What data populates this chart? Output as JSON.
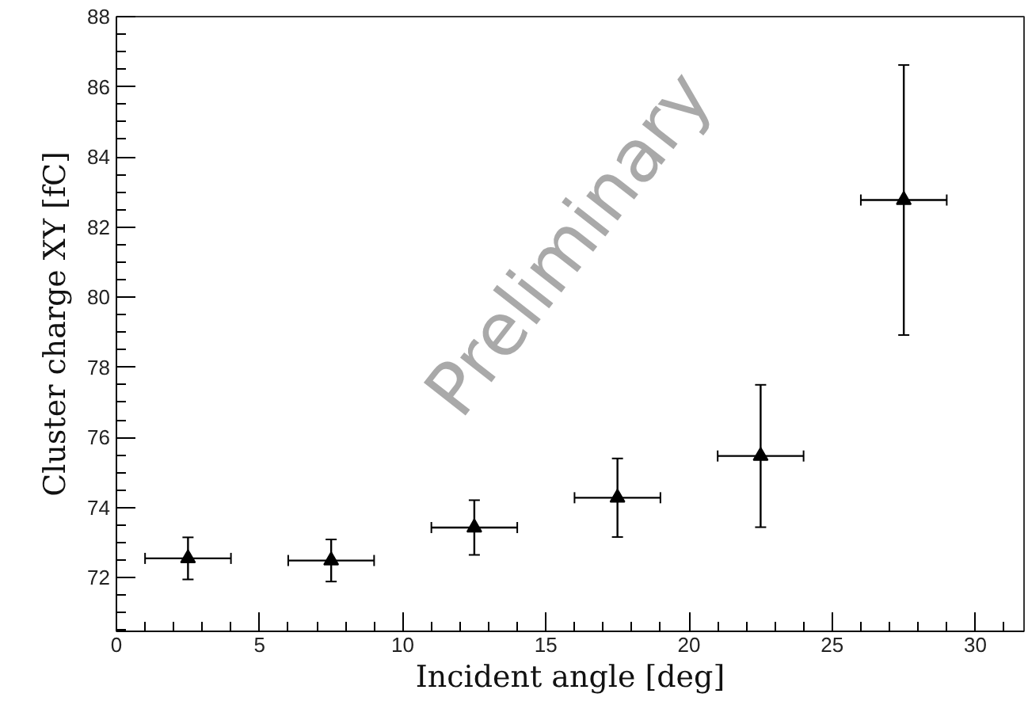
{
  "chart_data": {
    "type": "scatter",
    "xlabel": "Incident angle [deg]",
    "ylabel": "Cluster charge XY [fC]",
    "x": [
      2.5,
      7.5,
      12.5,
      17.5,
      22.5,
      27.5
    ],
    "values": [
      72.55,
      72.49,
      73.43,
      74.28,
      75.47,
      82.77
    ],
    "errors": [
      0.6,
      0.6,
      0.78,
      1.12,
      2.03,
      3.85
    ],
    "xerrors": [
      1.5,
      1.5,
      1.5,
      1.5,
      1.5,
      1.5
    ],
    "color": "#000000",
    "marker": "triangle",
    "grid": false,
    "xlim": [
      0,
      31.7
    ],
    "ylim": [
      70.47,
      88
    ],
    "xticks": [
      0,
      5,
      10,
      15,
      20,
      25,
      30,
      {
        "value": 1,
        "label": null
      },
      {
        "value": 2,
        "label": null
      },
      {
        "value": 3,
        "label": null
      },
      {
        "value": 4,
        "label": null
      },
      {
        "value": 6,
        "label": null
      },
      {
        "value": 7,
        "label": null
      },
      {
        "value": 8,
        "label": null
      },
      {
        "value": 9,
        "label": null
      },
      {
        "value": 11,
        "label": null
      },
      {
        "value": 12,
        "label": null
      },
      {
        "value": 13,
        "label": null
      },
      {
        "value": 14,
        "label": null
      },
      {
        "value": 16,
        "label": null
      },
      {
        "value": 17,
        "label": null
      },
      {
        "value": 18,
        "label": null
      },
      {
        "value": 19,
        "label": null
      },
      {
        "value": 21,
        "label": null
      },
      {
        "value": 22,
        "label": null
      },
      {
        "value": 23,
        "label": null
      },
      {
        "value": 24,
        "label": null
      },
      {
        "value": 26,
        "label": null
      },
      {
        "value": 27,
        "label": null
      },
      {
        "value": 28,
        "label": null
      },
      {
        "value": 29,
        "label": null
      },
      {
        "value": 31,
        "label": null
      }
    ],
    "yticks": [
      72,
      74,
      76,
      78,
      80,
      82,
      84,
      86,
      88,
      {
        "value": 70.5,
        "label": null
      },
      {
        "value": 71,
        "label": null
      },
      {
        "value": 71.5,
        "label": null
      },
      {
        "value": 72.5,
        "label": null
      },
      {
        "value": 73,
        "label": null
      },
      {
        "value": 73.5,
        "label": null
      },
      {
        "value": 74.5,
        "label": null
      },
      {
        "value": 75,
        "label": null
      },
      {
        "value": 75.5,
        "label": null
      },
      {
        "value": 76.5,
        "label": null
      },
      {
        "value": 77,
        "label": null
      },
      {
        "value": 77.5,
        "label": null
      },
      {
        "value": 78.5,
        "label": null
      },
      {
        "value": 79,
        "label": null
      },
      {
        "value": 79.5,
        "label": null
      },
      {
        "value": 80.5,
        "label": null
      },
      {
        "value": 81,
        "label": null
      },
      {
        "value": 81.5,
        "label": null
      },
      {
        "value": 82.5,
        "label": null
      },
      {
        "value": 83,
        "label": null
      },
      {
        "value": 83.5,
        "label": null
      },
      {
        "value": 84.5,
        "label": null
      },
      {
        "value": 85,
        "label": null
      },
      {
        "value": 85.5,
        "label": null
      },
      {
        "value": 86.5,
        "label": null
      },
      {
        "value": 87,
        "label": null
      },
      {
        "value": 87.5,
        "label": null
      }
    ],
    "annotations": [
      "Preliminary"
    ]
  }
}
